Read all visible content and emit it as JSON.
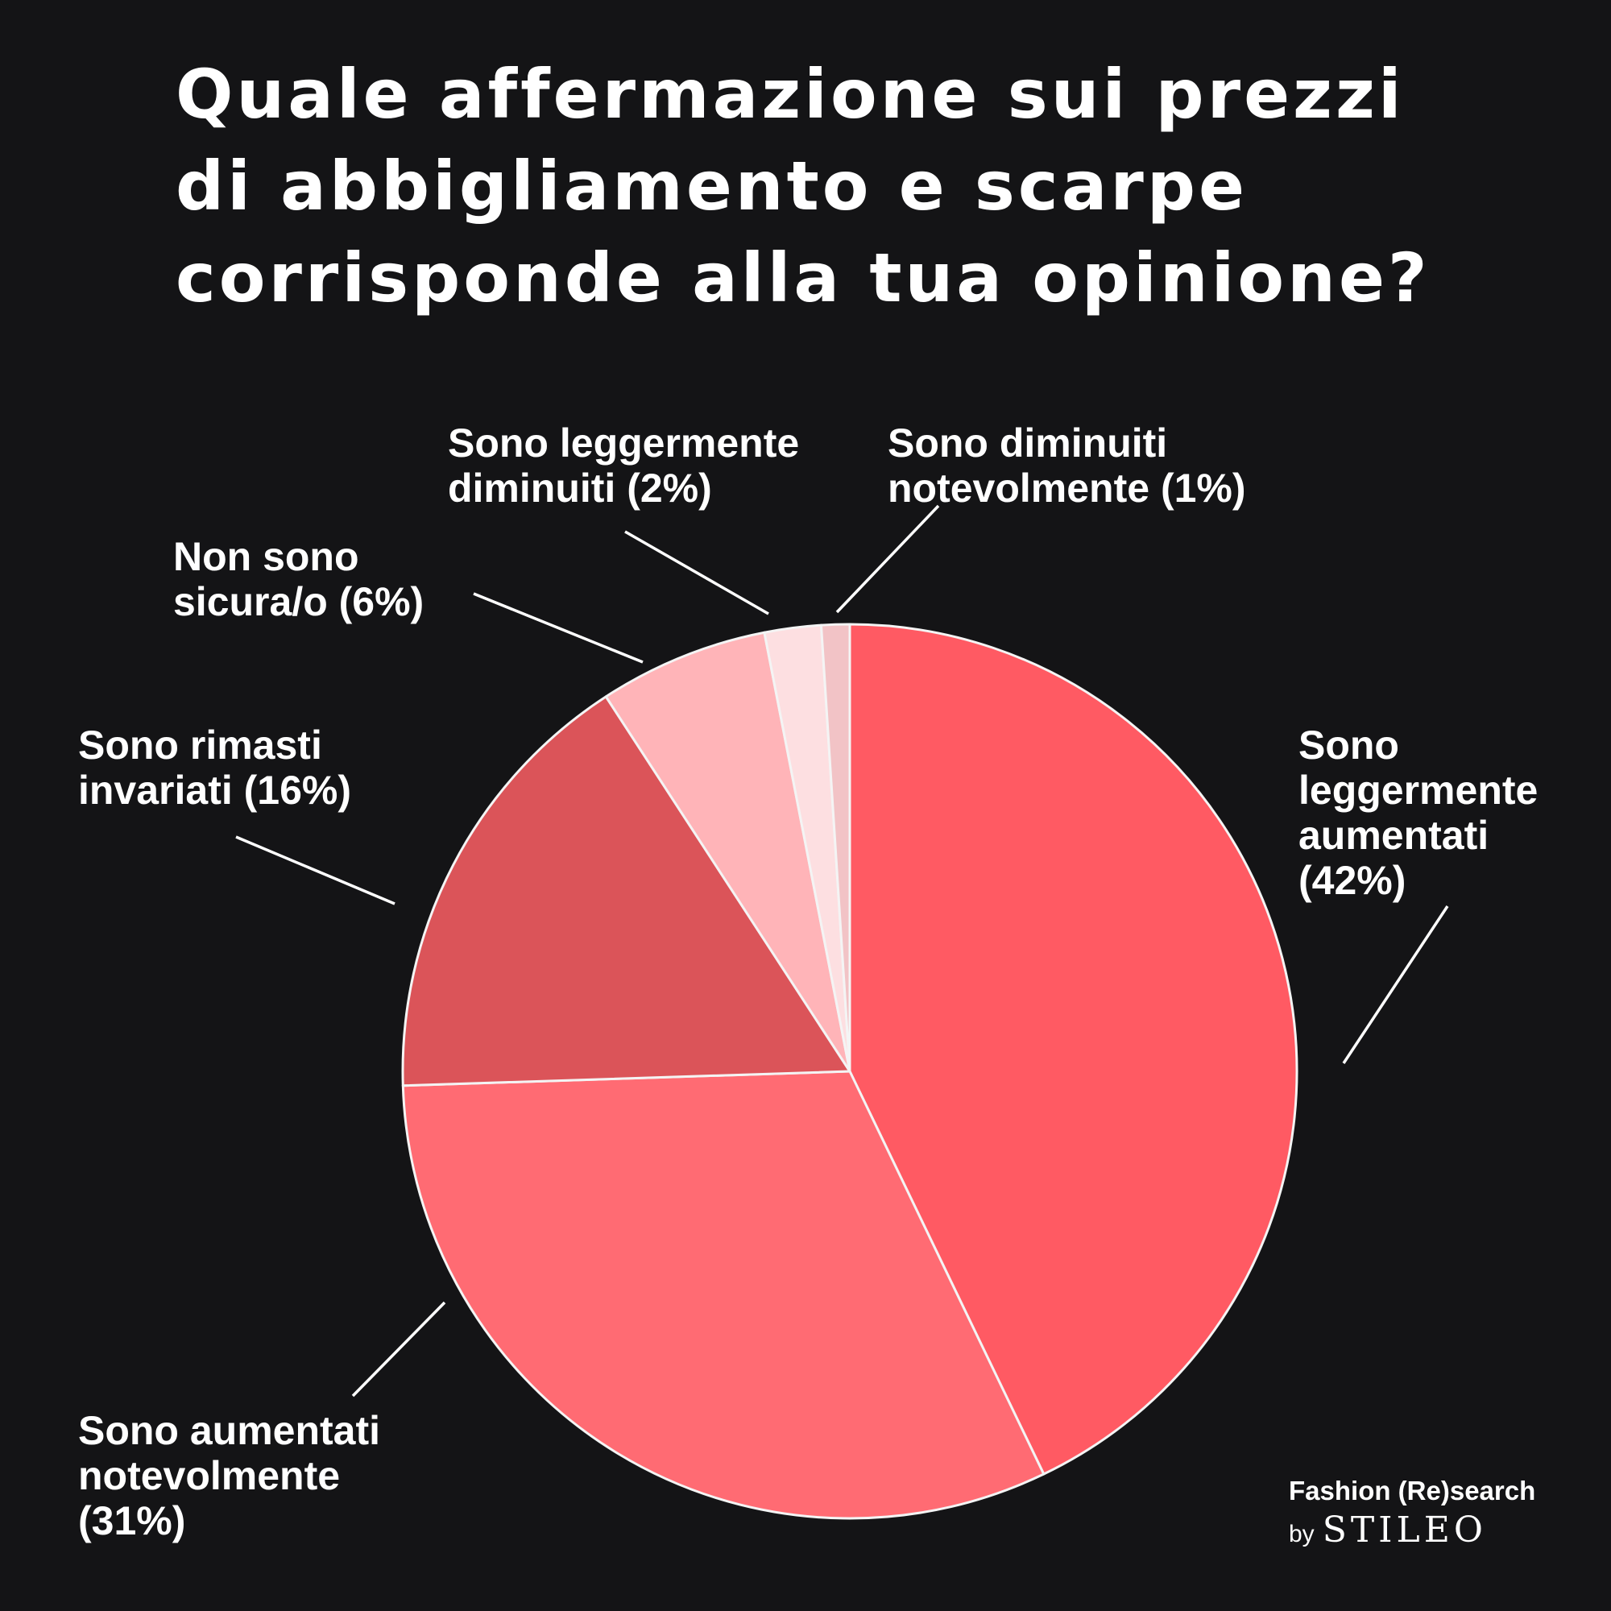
{
  "title": "Quale affermazione sui prezzi\ndi abbigliamento e scarpe\ncorrisponde alla tua opinione?",
  "chart_data": {
    "type": "pie",
    "slices": [
      {
        "label": "Sono leggermente aumentati (42%)",
        "label_lines": [
          "Sono",
          "leggermente",
          "aumentati",
          "(42%)"
        ],
        "value": 42,
        "color": "#ff5a63"
      },
      {
        "label": "Sono aumentati notevolmente (31%)",
        "label_lines": [
          "Sono aumentati",
          "notevolmente",
          "(31%)"
        ],
        "value": 31,
        "color": "#ff6b73"
      },
      {
        "label": "Sono rimasti invariati (16%)",
        "label_lines": [
          "Sono rimasti",
          "invariati (16%)"
        ],
        "value": 16,
        "color": "#db5459"
      },
      {
        "label": "Non sono sicura/o (6%)",
        "label_lines": [
          "Non sono",
          "sicura/o (6%)"
        ],
        "value": 6,
        "color": "#ffb4b8"
      },
      {
        "label": "Sono leggermente diminuiti (2%)",
        "label_lines": [
          "Sono leggermente",
          "diminuiti (2%)"
        ],
        "value": 2,
        "color": "#fddfe1"
      },
      {
        "label": "Sono diminuiti notevolmente (1%)",
        "label_lines": [
          "Sono diminuiti",
          "notevolmente (1%)"
        ],
        "value": 1,
        "color": "#f2c3c6"
      }
    ],
    "start_angle": "12 o'clock",
    "direction": "clockwise",
    "legend": "none"
  },
  "brand": {
    "line1": "Fashion (Re)search",
    "by": "by",
    "name": "STILEO"
  }
}
